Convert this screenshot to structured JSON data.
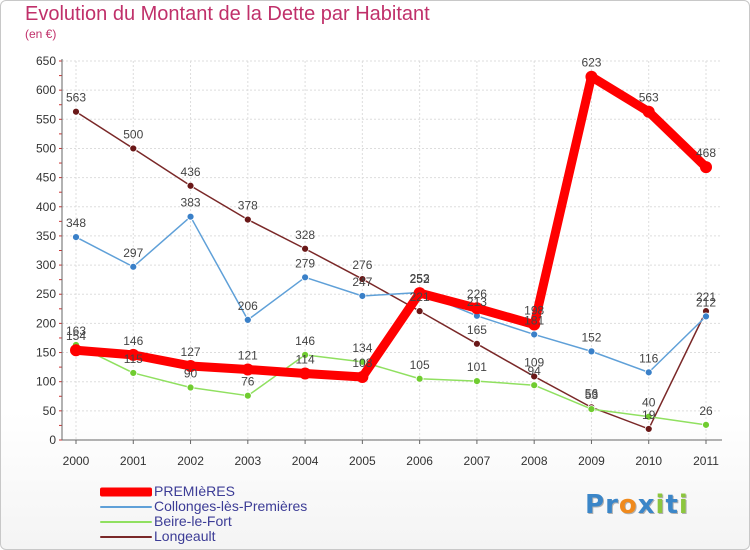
{
  "title": "Evolution du Montant de la Dette par Habitant",
  "subtitle": "(en €)",
  "brand": {
    "letters": [
      {
        "ch": "P",
        "color": "#3b86c8"
      },
      {
        "ch": "r",
        "color": "#3b86c8"
      },
      {
        "ch": "o",
        "color": "#f08a1c"
      },
      {
        "ch": "x",
        "color": "#3b86c8"
      },
      {
        "ch": "i",
        "color": "#8cc63e"
      },
      {
        "ch": "t",
        "color": "#3b86c8"
      },
      {
        "ch": "i",
        "color": "#8cc63e"
      }
    ]
  },
  "chart_data": {
    "type": "line",
    "x": [
      "2000",
      "2001",
      "2002",
      "2003",
      "2004",
      "2005",
      "2006",
      "2007",
      "2008",
      "2009",
      "2010",
      "2011"
    ],
    "ylim": [
      0,
      650
    ],
    "yticks": [
      0,
      50,
      100,
      150,
      200,
      250,
      300,
      350,
      400,
      450,
      500,
      550,
      600,
      650
    ],
    "grid": true,
    "legend_position": "bottom-left",
    "series": [
      {
        "name": "Longeault",
        "color": "#7a2828",
        "marker": "#6a1818",
        "values": [
          563,
          500,
          436,
          378,
          328,
          276,
          221,
          165,
          109,
          56,
          19,
          221
        ]
      },
      {
        "name": "Beire-le-Fort",
        "color": "#90e060",
        "marker": "#70cc30",
        "values": [
          163,
          115,
          90,
          76,
          146,
          134,
          105,
          101,
          94,
          53,
          40,
          26
        ]
      },
      {
        "name": "Collonges-lès-Premières",
        "color": "#5fa0d8",
        "marker": "#3a80c8",
        "values": [
          348,
          297,
          383,
          206,
          279,
          247,
          253,
          213,
          181,
          152,
          116,
          212
        ]
      },
      {
        "name": "PREMIèRES",
        "color": "#ff0000",
        "marker": "#ff0000",
        "values": [
          154,
          146,
          127,
          121,
          114,
          108,
          252,
          226,
          198,
          623,
          563,
          468
        ]
      }
    ],
    "value_labels": [
      {
        "series": "PREMIèRES",
        "values": [
          "154",
          "146",
          "127",
          "121",
          "114",
          "108",
          "252",
          "226",
          "198",
          "623",
          "563",
          "468"
        ]
      },
      {
        "series": "Collonges-lès-Premières",
        "values": [
          "348",
          "297",
          "383",
          "206",
          "279",
          "247",
          "253",
          "213",
          "181",
          "152",
          "116",
          "212"
        ]
      },
      {
        "series": "Beire-le-Fort",
        "values": [
          "163",
          "115",
          "90",
          "76",
          "146",
          "134",
          "105",
          "101",
          "94",
          "53",
          "40",
          "26"
        ]
      },
      {
        "series": "Longeault",
        "values": [
          "563",
          "500",
          "436",
          "378",
          "328",
          "276",
          "221",
          "165",
          "109",
          "56",
          "19",
          "221"
        ]
      }
    ]
  },
  "legend": [
    {
      "label": "PREMIèRES",
      "color": "#ff0000",
      "thickness": 9
    },
    {
      "label": "Collonges-lès-Premières",
      "color": "#5fa0d8",
      "thickness": 2
    },
    {
      "label": "Beire-le-Fort",
      "color": "#90e060",
      "thickness": 2
    },
    {
      "label": "Longeault",
      "color": "#7a2828",
      "thickness": 2
    }
  ]
}
